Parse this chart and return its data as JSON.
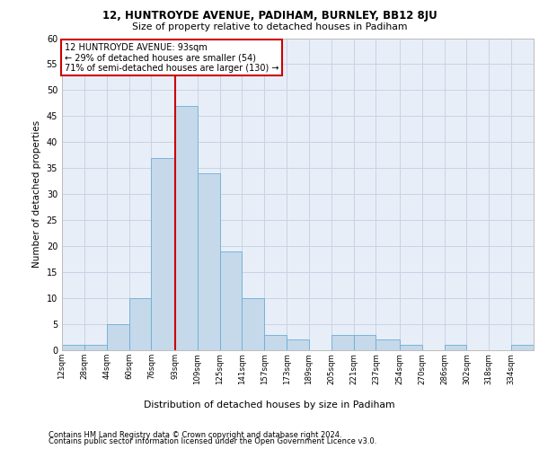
{
  "title1": "12, HUNTROYDE AVENUE, PADIHAM, BURNLEY, BB12 8JU",
  "title2": "Size of property relative to detached houses in Padiham",
  "xlabel": "Distribution of detached houses by size in Padiham",
  "ylabel": "Number of detached properties",
  "bin_labels": [
    "12sqm",
    "28sqm",
    "44sqm",
    "60sqm",
    "76sqm",
    "93sqm",
    "109sqm",
    "125sqm",
    "141sqm",
    "157sqm",
    "173sqm",
    "189sqm",
    "205sqm",
    "221sqm",
    "237sqm",
    "254sqm",
    "270sqm",
    "286sqm",
    "302sqm",
    "318sqm",
    "334sqm"
  ],
  "bin_edges": [
    12,
    28,
    44,
    60,
    76,
    93,
    109,
    125,
    141,
    157,
    173,
    189,
    205,
    221,
    237,
    254,
    270,
    286,
    302,
    318,
    334,
    350
  ],
  "bar_values": [
    1,
    1,
    5,
    10,
    37,
    47,
    34,
    19,
    10,
    3,
    2,
    0,
    3,
    3,
    2,
    1,
    0,
    1,
    0,
    0,
    1
  ],
  "bar_color": "#c5d9ea",
  "bar_edge_color": "#6aaed6",
  "property_line_x": 93,
  "annotation_line1": "12 HUNTROYDE AVENUE: 93sqm",
  "annotation_line2": "← 29% of detached houses are smaller (54)",
  "annotation_line3": "71% of semi-detached houses are larger (130) →",
  "annotation_box_color": "#cc0000",
  "vline_color": "#cc0000",
  "grid_color": "#c8d4e4",
  "bg_color": "#e8eef8",
  "footer1": "Contains HM Land Registry data © Crown copyright and database right 2024.",
  "footer2": "Contains public sector information licensed under the Open Government Licence v3.0.",
  "ylim": [
    0,
    60
  ],
  "yticks": [
    0,
    5,
    10,
    15,
    20,
    25,
    30,
    35,
    40,
    45,
    50,
    55,
    60
  ]
}
